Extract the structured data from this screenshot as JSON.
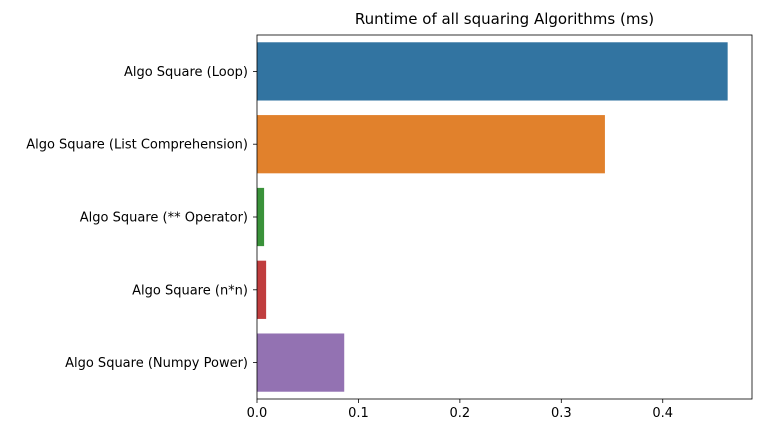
{
  "chart_data": {
    "type": "bar",
    "orientation": "horizontal",
    "title": "Runtime of all squaring Algorithms (ms)",
    "xlabel": "",
    "ylabel": "",
    "categories": [
      "Algo Square (Loop)",
      "Algo Square (List Comprehension)",
      "Algo Square (** Operator)",
      "Algo Square (n*n)",
      "Algo Square (Numpy Power)"
    ],
    "values": [
      0.464,
      0.343,
      0.007,
      0.009,
      0.086
    ],
    "colors": [
      "#3274a1",
      "#e1812c",
      "#3a923a",
      "#c03d3e",
      "#9372b2"
    ],
    "xlim": [
      0,
      0.488
    ],
    "xticks": [
      0.0,
      0.1,
      0.2,
      0.3,
      0.4
    ],
    "xtick_labels": [
      "0.0",
      "0.1",
      "0.2",
      "0.3",
      "0.4"
    ],
    "grid": false,
    "legend": "none"
  }
}
